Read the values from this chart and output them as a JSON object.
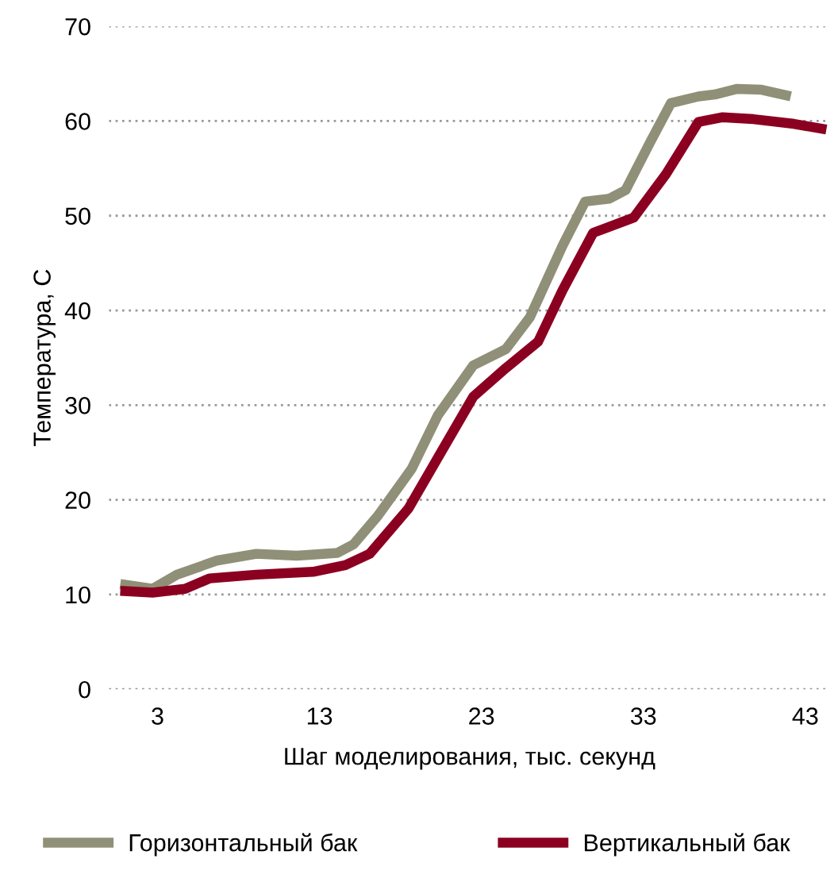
{
  "chart_data": {
    "type": "line",
    "xlabel": "Шаг моделирования, тыс. секунд",
    "ylabel": "Температура, С",
    "xlim": [
      0,
      44.5
    ],
    "xticks": [
      3,
      13,
      23,
      33,
      43
    ],
    "ylim": [
      0,
      70
    ],
    "yticks": [
      0,
      10,
      20,
      30,
      40,
      50,
      60,
      70
    ],
    "grid": "y",
    "legend": "bottom",
    "line_style": "solid",
    "series": [
      {
        "name": "Горизонтальный бак",
        "color": "#8f9077",
        "x": [
          0.7,
          2.7,
          4.2,
          6.7,
          9.1,
          11.6,
          14.1,
          15.1,
          16.6,
          18.7,
          20.3,
          22.5,
          24.5,
          26.0,
          28.0,
          29.4,
          30.9,
          31.9,
          33.4,
          34.7,
          36.4,
          37.4,
          38.8,
          40.3,
          42.1
        ],
        "values": [
          11.1,
          10.6,
          12.1,
          13.6,
          14.3,
          14.1,
          14.4,
          15.3,
          18.3,
          23.3,
          28.9,
          34.2,
          35.9,
          39.3,
          46.8,
          51.5,
          51.8,
          52.7,
          57.7,
          61.9,
          62.6,
          62.8,
          63.4,
          63.3,
          62.6
        ]
      },
      {
        "name": "Вертикальный бак",
        "color": "#8b0020",
        "x": [
          0.7,
          2.7,
          4.7,
          6.2,
          9.1,
          12.6,
          14.6,
          16.1,
          18.5,
          20.5,
          22.5,
          24.5,
          26.5,
          28.0,
          29.9,
          32.4,
          34.4,
          36.4,
          37.9,
          39.8,
          42.3,
          44.3
        ],
        "values": [
          10.4,
          10.2,
          10.6,
          11.7,
          12.1,
          12.4,
          13.1,
          14.3,
          19.1,
          25.0,
          30.9,
          33.9,
          36.7,
          42.1,
          48.2,
          49.8,
          54.4,
          59.9,
          60.4,
          60.2,
          59.7,
          59.1
        ]
      }
    ]
  }
}
